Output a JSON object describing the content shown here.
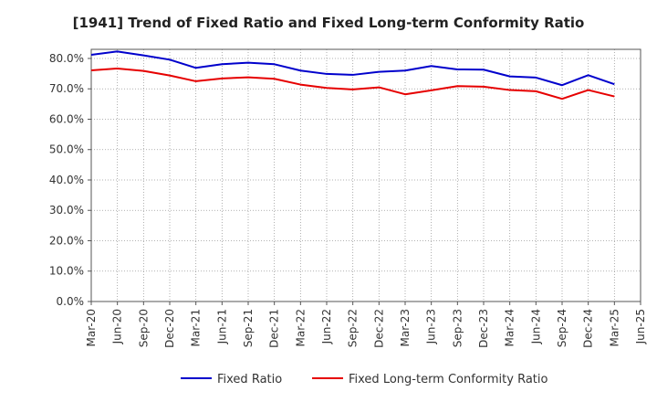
{
  "chart_data": {
    "type": "line",
    "title": "[1941]  Trend of Fixed Ratio and Fixed Long-term Conformity Ratio",
    "xlabel": "",
    "ylabel": "",
    "ylim": [
      0,
      83
    ],
    "yticks": [
      "0.0%",
      "10.0%",
      "20.0%",
      "30.0%",
      "40.0%",
      "50.0%",
      "60.0%",
      "70.0%",
      "80.0%"
    ],
    "ytick_values": [
      0,
      10,
      20,
      30,
      40,
      50,
      60,
      70,
      80
    ],
    "x": [
      "Mar-20",
      "Jun-20",
      "Sep-20",
      "Dec-20",
      "Mar-21",
      "Jun-21",
      "Sep-21",
      "Dec-21",
      "Mar-22",
      "Jun-22",
      "Sep-22",
      "Dec-22",
      "Mar-23",
      "Jun-23",
      "Sep-23",
      "Dec-23",
      "Mar-24",
      "Jun-24",
      "Sep-24",
      "Dec-24",
      "Mar-25",
      "Jun-25"
    ],
    "grid": true,
    "legend_position": "bottom-center",
    "series": [
      {
        "name": "Fixed Ratio",
        "color": "#0000cc",
        "values": [
          81.2,
          82.3,
          81.0,
          79.6,
          76.9,
          78.1,
          78.6,
          78.1,
          76.0,
          74.9,
          74.6,
          75.6,
          76.0,
          77.5,
          76.4,
          76.3,
          74.1,
          73.7,
          71.2,
          74.5,
          71.5,
          null
        ]
      },
      {
        "name": "Fixed Long-term Conformity Ratio",
        "color": "#e60000",
        "values": [
          76.1,
          76.7,
          75.9,
          74.4,
          72.5,
          73.4,
          73.8,
          73.3,
          71.4,
          70.3,
          69.8,
          70.5,
          68.2,
          69.5,
          70.9,
          70.7,
          69.6,
          69.2,
          66.7,
          69.6,
          67.5,
          null
        ]
      }
    ]
  }
}
